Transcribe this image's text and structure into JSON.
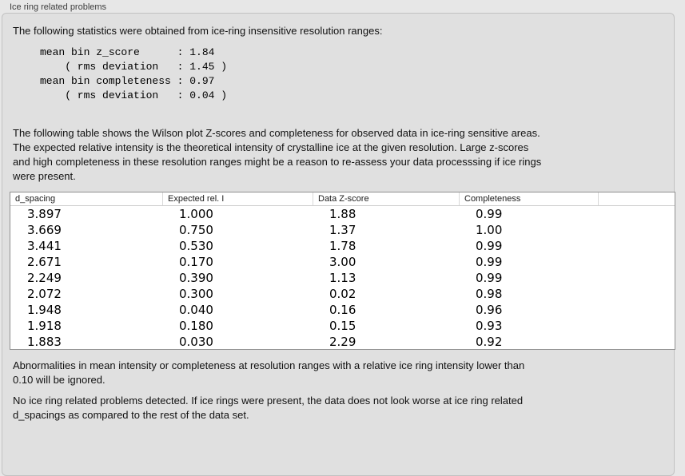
{
  "panel": {
    "title": "Ice ring related problems"
  },
  "colors": {
    "page_background": "#e7e7e7",
    "box_background": "#e0e0e0",
    "table_border": "#8f8f8f"
  },
  "intro_text": "The following statistics were obtained from ice-ring insensitive resolution ranges:",
  "stats_block": "mean bin z_score      : 1.84\n    ( rms deviation   : 1.45 )\nmean bin completeness : 0.97\n    ( rms deviation   : 0.04 )",
  "stats": {
    "mean_bin_z_score": "1.84",
    "mean_bin_z_score_rms_deviation": "1.45",
    "mean_bin_completeness": "0.97",
    "mean_bin_completeness_rms_deviation": "0.04"
  },
  "table_intro": "The following table shows the Wilson plot Z-scores and completeness for observed data in ice-ring sensitive areas.\nThe expected relative intensity is the theoretical intensity of crystalline ice at the given resolution. Large z-scores\nand high completeness in these resolution ranges might be a reason to re-assess your data processsing if ice rings\nwere present.",
  "table": {
    "columns": [
      "d_spacing",
      "Expected rel. I",
      "Data Z-score",
      "Completeness"
    ],
    "rows": [
      [
        "3.897",
        "1.000",
        "1.88",
        "0.99"
      ],
      [
        "3.669",
        "0.750",
        "1.37",
        "1.00"
      ],
      [
        "3.441",
        "0.530",
        "1.78",
        "0.99"
      ],
      [
        "2.671",
        "0.170",
        "3.00",
        "0.99"
      ],
      [
        "2.249",
        "0.390",
        "1.13",
        "0.99"
      ],
      [
        "2.072",
        "0.300",
        "0.02",
        "0.98"
      ],
      [
        "1.948",
        "0.040",
        "0.16",
        "0.96"
      ],
      [
        "1.918",
        "0.180",
        "0.15",
        "0.93"
      ],
      [
        "1.883",
        "0.030",
        "2.29",
        "0.92"
      ]
    ]
  },
  "note_ignore": "Abnormalities in mean intensity or completeness at resolution ranges with a relative ice ring intensity lower than\n0.10 will be ignored.",
  "conclusion": "No ice ring related problems detected. If ice rings were present, the data does not look worse at ice ring related\nd_spacings as compared to the rest of the data set."
}
